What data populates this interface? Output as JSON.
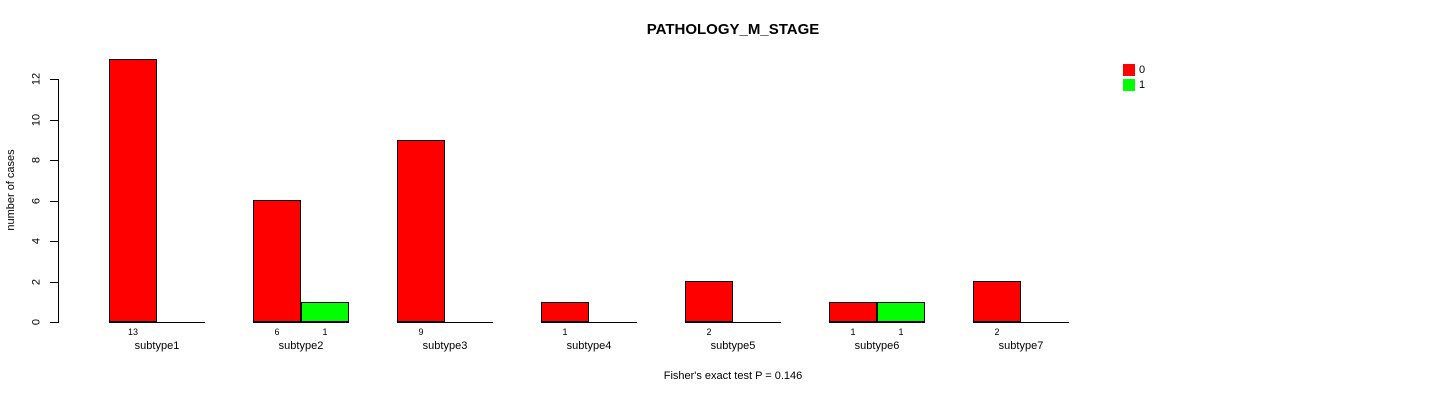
{
  "title": "PATHOLOGY_M_STAGE",
  "footer": "Fisher's exact test P = 0.146",
  "y_axis": {
    "label": "number of cases",
    "ticks": [
      0,
      2,
      4,
      6,
      8,
      10,
      12
    ]
  },
  "legend": {
    "items": [
      {
        "label": "0",
        "color": "#ff0000"
      },
      {
        "label": "1",
        "color": "#00ff00"
      }
    ]
  },
  "chart_data": {
    "type": "bar",
    "title": "PATHOLOGY_M_STAGE",
    "xlabel": "",
    "ylabel": "number of cases",
    "categories": [
      "subtype1",
      "subtype2",
      "subtype3",
      "subtype4",
      "subtype5",
      "subtype6",
      "subtype7"
    ],
    "series": [
      {
        "name": "0",
        "color": "#ff0000",
        "values": [
          13,
          6,
          9,
          1,
          2,
          1,
          2
        ]
      },
      {
        "name": "1",
        "color": "#00ff00",
        "values": [
          0,
          1,
          0,
          0,
          0,
          1,
          0
        ]
      }
    ],
    "bar_value_labels_nonzero_only": true,
    "ylim": [
      0,
      13
    ],
    "yticks": [
      0,
      2,
      4,
      6,
      8,
      10,
      12
    ],
    "grid": false,
    "legend_position": "top-right",
    "annotation": "Fisher's exact test P = 0.146"
  }
}
